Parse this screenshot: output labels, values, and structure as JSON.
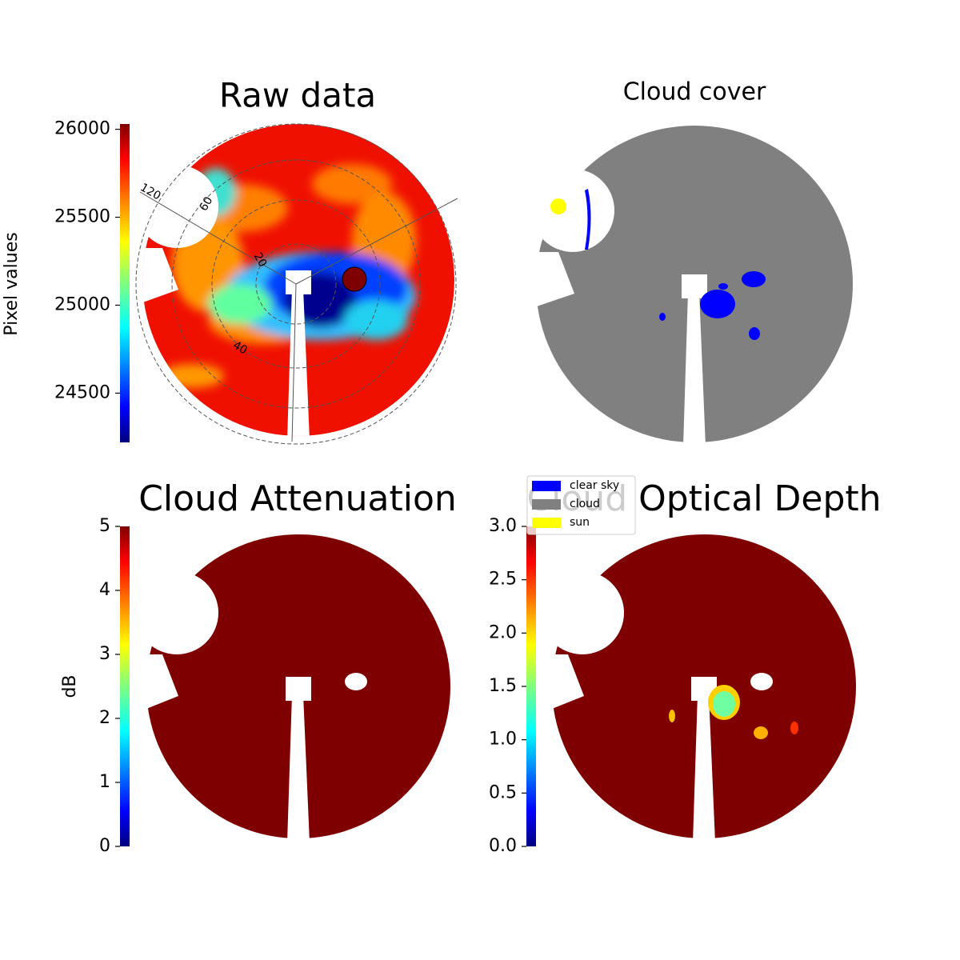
{
  "chart_data": [
    {
      "type": "image",
      "title": "Raw data",
      "colorbar_label": "Pixel values",
      "ylim": [
        24220,
        26030
      ],
      "yticks": [
        24500,
        25000,
        25500,
        26000
      ],
      "annotations": [
        "120",
        "60",
        "20",
        "40"
      ]
    },
    {
      "type": "image",
      "title": "Cloud cover",
      "series": [
        {
          "name": "clear sky",
          "color": "#0000ff"
        },
        {
          "name": "cloud",
          "color": "#808080"
        },
        {
          "name": "sun",
          "color": "#ffff00"
        }
      ]
    },
    {
      "type": "image",
      "title": "Cloud Attenuation",
      "colorbar_label": "dB",
      "ylim": [
        0,
        5
      ],
      "yticks": [
        0,
        1,
        2,
        3,
        4,
        5
      ]
    },
    {
      "type": "image",
      "title": "Cloud Optical Depth",
      "ylim": [
        0,
        3
      ],
      "yticks": [
        {
          "value": 0,
          "label": "0.0"
        },
        0.5,
        {
          "value": 1,
          "label": "1.0"
        },
        1.5,
        {
          "value": 2,
          "label": "2.0"
        },
        2.5,
        {
          "value": 3,
          "label": "3.0"
        }
      ]
    }
  ]
}
